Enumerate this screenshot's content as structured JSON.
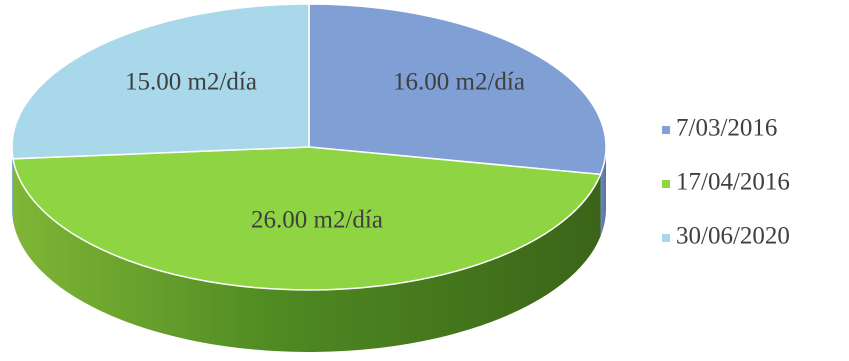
{
  "chart_data": {
    "type": "pie",
    "style": "3d",
    "legend_position": "right",
    "slices": [
      {
        "category": "7/03/2016",
        "value": 16.0,
        "label": "16.00 m2/día",
        "color": "#7f9fd5"
      },
      {
        "category": "17/04/2016",
        "value": 26.0,
        "label": "26.00 m2/día",
        "color": "#8fd443"
      },
      {
        "category": "30/06/2020",
        "value": 15.0,
        "label": "15.00 m2/día",
        "color": "#a9d8ea"
      }
    ]
  }
}
